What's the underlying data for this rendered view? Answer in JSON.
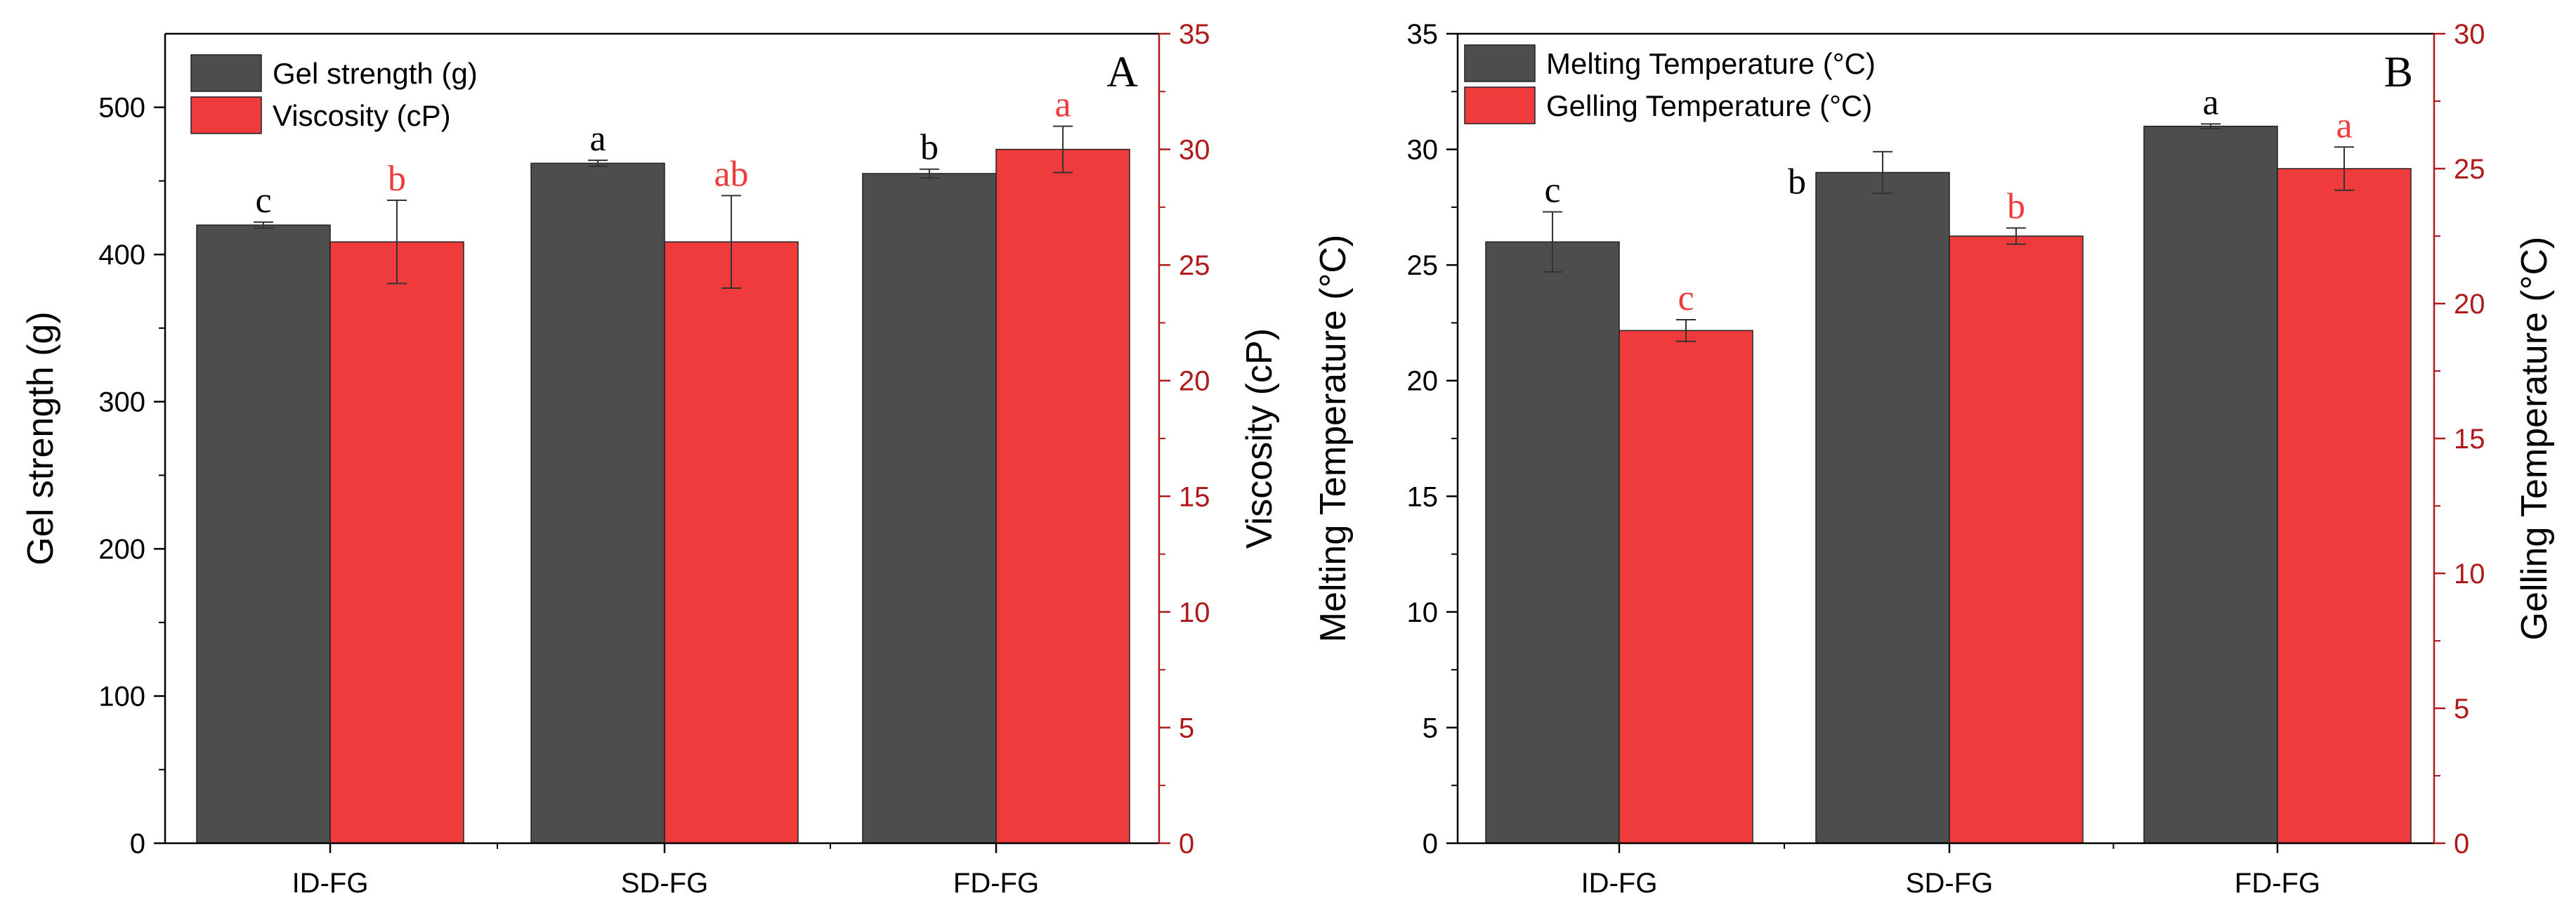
{
  "colors": {
    "dark": "#4d4d4d",
    "red": "#ef3b3b",
    "axis_red": "#b01a1a",
    "black": "#000000"
  },
  "chart_data": [
    {
      "type": "bar",
      "panel_label": "A",
      "categories": [
        "ID-FG",
        "SD-FG",
        "FD-FG"
      ],
      "left_axis": {
        "label": "Gel strength (g)",
        "ylim": [
          0,
          550
        ],
        "ticks": [
          0,
          100,
          200,
          300,
          400,
          500
        ]
      },
      "right_axis": {
        "label": "Viscosity (cP)",
        "ylim": [
          0,
          35
        ],
        "ticks": [
          0,
          5,
          10,
          15,
          20,
          25,
          30,
          35
        ]
      },
      "series": [
        {
          "name": "Gel strength (g)",
          "axis": "left",
          "color": "dark",
          "values": [
            420,
            462,
            455
          ],
          "errors": [
            2,
            2,
            3
          ],
          "letters": [
            "c",
            "a",
            "b"
          ]
        },
        {
          "name": "Viscosity (cP)",
          "axis": "right",
          "color": "red",
          "values": [
            26,
            26,
            30
          ],
          "errors": [
            1.8,
            2.0,
            1.0
          ],
          "letters": [
            "b",
            "ab",
            "a"
          ]
        }
      ],
      "legend_position": "top-left"
    },
    {
      "type": "bar",
      "panel_label": "B",
      "categories": [
        "ID-FG",
        "SD-FG",
        "FD-FG"
      ],
      "left_axis": {
        "label": "Melting Temperature (°C)",
        "ylim": [
          0,
          35
        ],
        "ticks": [
          0,
          5,
          10,
          15,
          20,
          25,
          30,
          35
        ]
      },
      "right_axis": {
        "label": "Gelling Temperature (°C)",
        "ylim": [
          0,
          30
        ],
        "ticks": [
          0,
          5,
          10,
          15,
          20,
          25,
          30
        ]
      },
      "series": [
        {
          "name": "Melting Temperature (°C)",
          "axis": "left",
          "color": "dark",
          "values": [
            26,
            29,
            31
          ],
          "errors": [
            1.3,
            0.9,
            0.1
          ],
          "letters": [
            "c",
            "b",
            "a"
          ]
        },
        {
          "name": "Gelling Temperature (°C)",
          "axis": "right",
          "color": "red",
          "values": [
            19,
            22.5,
            25
          ],
          "errors": [
            0.4,
            0.3,
            0.8
          ],
          "letters": [
            "c",
            "b",
            "a"
          ]
        }
      ],
      "legend_position": "top-left"
    }
  ]
}
